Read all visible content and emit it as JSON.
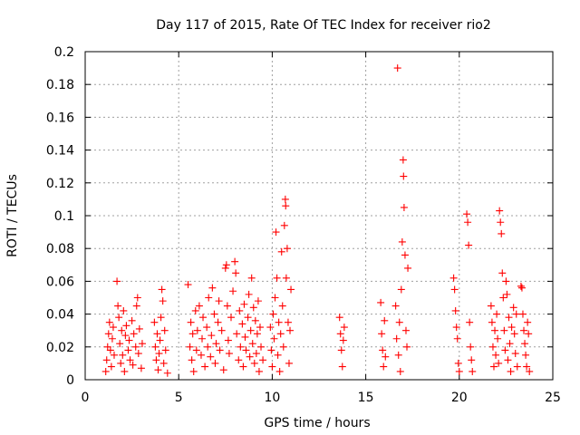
{
  "chart_data": {
    "type": "scatter",
    "title": "Day 117 of 2015, Rate Of TEC Index for receiver rio2",
    "xlabel": "GPS time / hours",
    "ylabel": "ROTI / TECUs",
    "xlim": [
      0,
      25
    ],
    "ylim": [
      0,
      0.2
    ],
    "xticks": [
      0,
      5,
      10,
      15,
      20,
      25
    ],
    "yticks": [
      0,
      0.02,
      0.04,
      0.06,
      0.08,
      0.1,
      0.12,
      0.14,
      0.16,
      0.18,
      0.2
    ],
    "grid": true,
    "marker": "+",
    "color": "#ff0000",
    "series": [
      {
        "name": "ROTI",
        "points": [
          [
            1.1,
            0.005
          ],
          [
            1.15,
            0.012
          ],
          [
            1.2,
            0.02
          ],
          [
            1.25,
            0.028
          ],
          [
            1.3,
            0.035
          ],
          [
            1.35,
            0.018
          ],
          [
            1.4,
            0.008
          ],
          [
            1.45,
            0.025
          ],
          [
            1.5,
            0.032
          ],
          [
            1.55,
            0.015
          ],
          [
            1.7,
            0.06
          ],
          [
            1.75,
            0.045
          ],
          [
            1.8,
            0.038
          ],
          [
            1.85,
            0.022
          ],
          [
            1.9,
            0.01
          ],
          [
            1.95,
            0.03
          ],
          [
            2.0,
            0.015
          ],
          [
            2.05,
            0.042
          ],
          [
            2.1,
            0.005
          ],
          [
            2.15,
            0.027
          ],
          [
            2.2,
            0.033
          ],
          [
            2.3,
            0.018
          ],
          [
            2.35,
            0.024
          ],
          [
            2.4,
            0.012
          ],
          [
            2.5,
            0.036
          ],
          [
            2.55,
            0.009
          ],
          [
            2.6,
            0.028
          ],
          [
            2.7,
            0.02
          ],
          [
            2.75,
            0.045
          ],
          [
            2.8,
            0.05
          ],
          [
            2.85,
            0.016
          ],
          [
            2.9,
            0.031
          ],
          [
            3.0,
            0.007
          ],
          [
            3.05,
            0.022
          ],
          [
            3.7,
            0.035
          ],
          [
            3.75,
            0.02
          ],
          [
            3.8,
            0.012
          ],
          [
            3.85,
            0.028
          ],
          [
            3.9,
            0.006
          ],
          [
            3.95,
            0.016
          ],
          [
            4.0,
            0.024
          ],
          [
            4.05,
            0.038
          ],
          [
            4.1,
            0.055
          ],
          [
            4.15,
            0.048
          ],
          [
            4.2,
            0.01
          ],
          [
            4.25,
            0.03
          ],
          [
            4.3,
            0.018
          ],
          [
            4.4,
            0.004
          ],
          [
            5.5,
            0.058
          ],
          [
            5.6,
            0.02
          ],
          [
            5.65,
            0.035
          ],
          [
            5.7,
            0.012
          ],
          [
            5.75,
            0.028
          ],
          [
            5.8,
            0.005
          ],
          [
            5.9,
            0.042
          ],
          [
            5.95,
            0.018
          ],
          [
            6.0,
            0.03
          ],
          [
            6.1,
            0.045
          ],
          [
            6.2,
            0.015
          ],
          [
            6.25,
            0.025
          ],
          [
            6.3,
            0.038
          ],
          [
            6.4,
            0.008
          ],
          [
            6.5,
            0.032
          ],
          [
            6.55,
            0.02
          ],
          [
            6.6,
            0.05
          ],
          [
            6.7,
            0.014
          ],
          [
            6.75,
            0.027
          ],
          [
            6.8,
            0.056
          ],
          [
            6.9,
            0.04
          ],
          [
            6.95,
            0.01
          ],
          [
            7.0,
            0.022
          ],
          [
            7.1,
            0.035
          ],
          [
            7.15,
            0.048
          ],
          [
            7.2,
            0.018
          ],
          [
            7.3,
            0.03
          ],
          [
            7.4,
            0.006
          ],
          [
            7.5,
            0.068
          ],
          [
            7.55,
            0.07
          ],
          [
            7.6,
            0.045
          ],
          [
            7.65,
            0.024
          ],
          [
            7.7,
            0.016
          ],
          [
            7.8,
            0.038
          ],
          [
            7.9,
            0.054
          ],
          [
            8.0,
            0.072
          ],
          [
            8.05,
            0.065
          ],
          [
            8.1,
            0.028
          ],
          [
            8.2,
            0.012
          ],
          [
            8.25,
            0.042
          ],
          [
            8.3,
            0.02
          ],
          [
            8.4,
            0.034
          ],
          [
            8.45,
            0.008
          ],
          [
            8.5,
            0.046
          ],
          [
            8.55,
            0.026
          ],
          [
            8.6,
            0.018
          ],
          [
            8.7,
            0.038
          ],
          [
            8.75,
            0.052
          ],
          [
            8.8,
            0.014
          ],
          [
            8.85,
            0.03
          ],
          [
            8.9,
            0.062
          ],
          [
            8.95,
            0.022
          ],
          [
            9.0,
            0.044
          ],
          [
            9.05,
            0.01
          ],
          [
            9.1,
            0.036
          ],
          [
            9.15,
            0.016
          ],
          [
            9.2,
            0.028
          ],
          [
            9.25,
            0.048
          ],
          [
            9.3,
            0.005
          ],
          [
            9.35,
            0.032
          ],
          [
            9.4,
            0.02
          ],
          [
            9.5,
            0.012
          ],
          [
            9.9,
            0.032
          ],
          [
            9.95,
            0.018
          ],
          [
            10.0,
            0.008
          ],
          [
            10.05,
            0.04
          ],
          [
            10.1,
            0.025
          ],
          [
            10.15,
            0.05
          ],
          [
            10.2,
            0.09
          ],
          [
            10.25,
            0.062
          ],
          [
            10.3,
            0.015
          ],
          [
            10.35,
            0.035
          ],
          [
            10.4,
            0.005
          ],
          [
            10.45,
            0.028
          ],
          [
            10.5,
            0.078
          ],
          [
            10.55,
            0.045
          ],
          [
            10.6,
            0.02
          ],
          [
            10.65,
            0.094
          ],
          [
            10.7,
            0.11
          ],
          [
            10.72,
            0.106
          ],
          [
            10.75,
            0.062
          ],
          [
            10.8,
            0.08
          ],
          [
            10.85,
            0.035
          ],
          [
            10.9,
            0.01
          ],
          [
            10.95,
            0.03
          ],
          [
            11.0,
            0.055
          ],
          [
            13.6,
            0.038
          ],
          [
            13.65,
            0.028
          ],
          [
            13.7,
            0.018
          ],
          [
            13.75,
            0.008
          ],
          [
            13.8,
            0.024
          ],
          [
            13.85,
            0.032
          ],
          [
            15.8,
            0.047
          ],
          [
            15.85,
            0.028
          ],
          [
            15.9,
            0.018
          ],
          [
            15.95,
            0.008
          ],
          [
            16.0,
            0.036
          ],
          [
            16.05,
            0.014
          ],
          [
            16.6,
            0.045
          ],
          [
            16.65,
            0.025
          ],
          [
            16.7,
            0.19
          ],
          [
            16.75,
            0.015
          ],
          [
            16.8,
            0.035
          ],
          [
            16.85,
            0.005
          ],
          [
            16.9,
            0.055
          ],
          [
            16.95,
            0.084
          ],
          [
            17.0,
            0.134
          ],
          [
            17.02,
            0.124
          ],
          [
            17.05,
            0.105
          ],
          [
            17.1,
            0.076
          ],
          [
            17.15,
            0.03
          ],
          [
            17.2,
            0.02
          ],
          [
            17.25,
            0.068
          ],
          [
            19.7,
            0.062
          ],
          [
            19.75,
            0.055
          ],
          [
            19.8,
            0.042
          ],
          [
            19.85,
            0.032
          ],
          [
            19.9,
            0.025
          ],
          [
            19.95,
            0.01
          ],
          [
            20.0,
            0.005
          ],
          [
            20.4,
            0.101
          ],
          [
            20.45,
            0.096
          ],
          [
            20.5,
            0.082
          ],
          [
            20.55,
            0.035
          ],
          [
            20.6,
            0.02
          ],
          [
            20.65,
            0.012
          ],
          [
            20.7,
            0.005
          ],
          [
            21.7,
            0.045
          ],
          [
            21.75,
            0.035
          ],
          [
            21.8,
            0.02
          ],
          [
            21.85,
            0.008
          ],
          [
            21.9,
            0.03
          ],
          [
            21.95,
            0.015
          ],
          [
            22.0,
            0.04
          ],
          [
            22.05,
            0.025
          ],
          [
            22.1,
            0.01
          ],
          [
            22.15,
            0.103
          ],
          [
            22.2,
            0.096
          ],
          [
            22.25,
            0.089
          ],
          [
            22.3,
            0.065
          ],
          [
            22.35,
            0.05
          ],
          [
            22.4,
            0.03
          ],
          [
            22.45,
            0.018
          ],
          [
            22.5,
            0.06
          ],
          [
            22.55,
            0.052
          ],
          [
            22.6,
            0.012
          ],
          [
            22.65,
            0.038
          ],
          [
            22.7,
            0.022
          ],
          [
            22.75,
            0.005
          ],
          [
            22.8,
            0.032
          ],
          [
            22.9,
            0.044
          ],
          [
            22.95,
            0.028
          ],
          [
            23.0,
            0.016
          ],
          [
            23.05,
            0.04
          ],
          [
            23.1,
            0.008
          ],
          [
            23.3,
            0.057
          ],
          [
            23.35,
            0.056
          ],
          [
            23.4,
            0.04
          ],
          [
            23.45,
            0.03
          ],
          [
            23.5,
            0.022
          ],
          [
            23.55,
            0.015
          ],
          [
            23.6,
            0.008
          ],
          [
            23.65,
            0.035
          ],
          [
            23.7,
            0.028
          ],
          [
            23.75,
            0.005
          ]
        ]
      }
    ]
  }
}
